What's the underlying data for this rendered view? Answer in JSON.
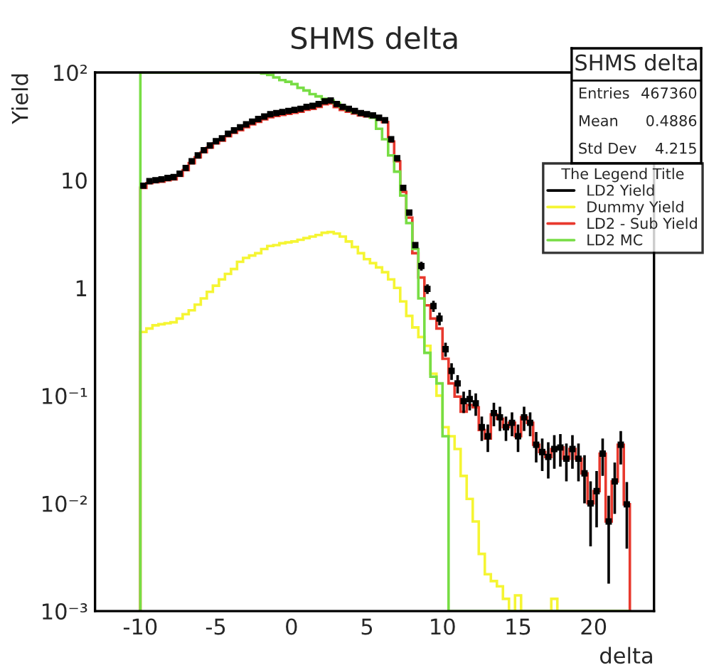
{
  "chart_data": {
    "type": "histogram",
    "title": "SHMS delta",
    "xlabel": "delta",
    "ylabel": "Yield",
    "legend_title": "The Legend Title",
    "annotations": [
      "SHMS delta",
      "Entries",
      "467360",
      "Mean",
      "0.4886",
      "Std Dev",
      "4.215"
    ],
    "log": "y",
    "grid": false,
    "legend": "top right",
    "xlim": [
      -13,
      24
    ],
    "xticks": [
      -10,
      -5,
      0,
      5,
      10,
      15,
      20
    ],
    "ylim": [
      0.001,
      100
    ],
    "yticks": [
      {
        "value": 0.001,
        "label": "10⁻³"
      },
      {
        "value": 0.01,
        "label": "10⁻²"
      },
      {
        "value": 0.1,
        "label": "10⁻¹"
      },
      1,
      10,
      {
        "value": 100,
        "label": "10²"
      }
    ],
    "bins": [
      -10,
      -9.6,
      -9.2,
      -8.8,
      -8.4,
      -8,
      -7.6,
      -7.2,
      -6.8,
      -6.4,
      -6,
      -5.6,
      -5.2,
      -4.8,
      -4.4,
      -4,
      -3.6,
      -3.2,
      -2.8,
      -2.4,
      -2,
      -1.6,
      -1.2,
      -0.8,
      -0.4,
      0,
      0.4,
      0.8,
      1.2,
      1.6,
      2,
      2.4,
      2.8,
      3.2,
      3.6,
      4,
      4.4,
      4.8,
      5.2,
      5.6,
      6,
      6.4,
      6.8,
      7.2,
      7.6,
      8,
      8.4,
      8.8,
      9.2,
      9.6,
      10,
      10.4,
      10.8,
      11.2,
      11.6,
      12,
      12.4,
      12.8,
      13.2,
      13.6,
      14,
      14.4,
      14.8,
      15.2,
      15.6,
      16,
      16.4,
      16.8,
      17.2,
      17.6,
      18,
      18.4,
      18.8,
      19.2,
      19.6,
      20,
      20.4,
      20.8,
      21.2,
      21.6,
      22,
      22.4
    ],
    "series": [
      {
        "name": "LD2 Yield",
        "type": "scatter",
        "marker": "square",
        "color": "#000000",
        "x": [
          -9.8,
          -9.4,
          -9,
          -8.6,
          -8.2,
          -7.8,
          -7.4,
          -7,
          -6.6,
          -6.2,
          -5.8,
          -5.4,
          -5,
          -4.6,
          -4.2,
          -3.8,
          -3.4,
          -3,
          -2.6,
          -2.2,
          -1.8,
          -1.4,
          -1,
          -0.6,
          -0.2,
          0.2,
          0.6,
          1,
          1.4,
          1.8,
          2.2,
          2.6,
          3,
          3.4,
          3.8,
          4.2,
          4.6,
          5,
          5.4,
          5.8,
          6.2,
          6.6,
          7,
          7.4,
          7.8,
          8.2,
          8.6,
          9,
          9.4,
          9.8,
          10.2,
          10.6,
          11,
          11.4,
          11.8,
          12.2,
          12.6,
          13,
          13.4,
          13.8,
          14.2,
          14.6,
          15,
          15.4,
          15.8,
          16.2,
          16.6,
          17,
          17.4,
          17.8,
          18.2,
          18.6,
          19,
          19.4,
          19.8,
          20.2,
          20.6,
          21,
          21.4,
          21.8,
          22.2
        ],
        "values": [
          8.9,
          9.8,
          10,
          10.2,
          10.5,
          10.7,
          11.5,
          13,
          15,
          17,
          19,
          21,
          23,
          24.5,
          27,
          29,
          31,
          33,
          35,
          37,
          39,
          41,
          42,
          43,
          44,
          45,
          46,
          48,
          49,
          51,
          54,
          55,
          51,
          48,
          46,
          44,
          42,
          41,
          40,
          38,
          36,
          24,
          16,
          8.5,
          5,
          2.5,
          1.6,
          0.98,
          0.68,
          0.52,
          0.27,
          0.17,
          0.13,
          0.089,
          0.093,
          0.085,
          0.051,
          0.042,
          0.069,
          0.063,
          0.051,
          0.056,
          0.042,
          0.063,
          0.056,
          0.035,
          0.03,
          0.027,
          0.032,
          0.033,
          0.026,
          0.032,
          0.026,
          0.019,
          0.01,
          0.013,
          0.029,
          0.0068,
          0.016,
          0.035,
          0.0098
        ],
        "errors": [
          null,
          null,
          null,
          null,
          null,
          null,
          null,
          null,
          null,
          null,
          null,
          null,
          null,
          null,
          null,
          null,
          null,
          null,
          null,
          null,
          null,
          null,
          null,
          null,
          null,
          null,
          null,
          null,
          null,
          null,
          null,
          null,
          null,
          null,
          null,
          null,
          null,
          null,
          null,
          null,
          null,
          null,
          null,
          null,
          null,
          null,
          0.15,
          0.1,
          0.08,
          0.07,
          0.04,
          0.03,
          0.025,
          0.02,
          0.02,
          0.02,
          0.013,
          0.012,
          0.017,
          0.016,
          0.013,
          0.014,
          0.012,
          0.016,
          0.014,
          0.011,
          0.01,
          0.01,
          0.011,
          0.011,
          0.01,
          0.011,
          0.01,
          0.009,
          0.006,
          0.007,
          0.011,
          0.005,
          0.008,
          0.012,
          0.006
        ],
        "xerrors": [
          0.12,
          0.12,
          0.12,
          0.12,
          0.12,
          0.12,
          0.12,
          0.12,
          0.12,
          0.12,
          0.12,
          0.12,
          0.12,
          0.12,
          0.12,
          0.12,
          0.12,
          0.12,
          0.12,
          0.12,
          0.12,
          0.12,
          0.12,
          0.12,
          0.12,
          0.12,
          0.12,
          0.12,
          0.12,
          0.12,
          0.12,
          0.12,
          0.12,
          0.12,
          0.12,
          0.12,
          0.12,
          0.12,
          0.12,
          0.12,
          0.12,
          0.12,
          0.12,
          0.12,
          0.12,
          0.12,
          0.12,
          0.12,
          0.12,
          0.12,
          0.12,
          0.12,
          0.12,
          0.12,
          0.12,
          0.12,
          0.12,
          0.12,
          0.12,
          0.12,
          0.12,
          0.12,
          0.12,
          0.12,
          0.12,
          0.12,
          0.12,
          0.12,
          0.12,
          0.12,
          0.12,
          0.12,
          0.12,
          0.12,
          0.12,
          0.12,
          0.12,
          0.12,
          0.12,
          0.12,
          0.12
        ]
      },
      {
        "name": "Dummy Yield",
        "type": "histogram",
        "color": "#f5f533",
        "values": [
          0.39,
          0.42,
          0.45,
          0.46,
          0.47,
          0.48,
          0.52,
          0.57,
          0.62,
          0.7,
          0.8,
          0.92,
          1.05,
          1.2,
          1.35,
          1.5,
          1.75,
          1.9,
          2,
          2.1,
          2.3,
          2.45,
          2.5,
          2.6,
          2.65,
          2.7,
          2.8,
          2.9,
          3,
          3.1,
          3.25,
          3.3,
          3.2,
          3,
          2.7,
          2.4,
          2.1,
          1.85,
          1.7,
          1.55,
          1.4,
          1.2,
          1,
          0.75,
          0.55,
          0.43,
          0.35,
          0.29,
          0.16,
          0.1,
          0.051,
          0.042,
          0.032,
          0.018,
          0.011,
          0.0068,
          0.0034,
          0.0022,
          0.0019,
          0.0017,
          0.0013,
          null,
          0.0014,
          null,
          null,
          null,
          null,
          null,
          0.0013,
          null,
          null,
          null,
          null,
          null,
          null,
          null,
          null,
          null,
          null,
          null,
          null
        ]
      },
      {
        "name": "LD2 - Sub Yield",
        "type": "histogram",
        "color": "#e8392e",
        "values": [
          8.5,
          9.4,
          9.6,
          9.7,
          10,
          10.2,
          11,
          12.4,
          14.4,
          16.3,
          18.2,
          20.1,
          22,
          23.3,
          25.6,
          27.5,
          29.2,
          31.1,
          33,
          34.9,
          36.7,
          38.5,
          39.5,
          40.4,
          41.3,
          42.3,
          43.2,
          45.1,
          46,
          47.9,
          50.8,
          51.7,
          47.8,
          45,
          43.3,
          41.6,
          39.9,
          39.2,
          38.3,
          36.5,
          34.6,
          22.8,
          15,
          7.8,
          4.5,
          2.1,
          1.25,
          0.69,
          0.52,
          0.42,
          0.22,
          0.13,
          0.098,
          0.071,
          0.082,
          0.078,
          0.048,
          0.04,
          0.067,
          0.061,
          0.051,
          0.056,
          0.042,
          0.063,
          0.056,
          0.035,
          0.03,
          0.027,
          0.032,
          0.033,
          0.026,
          0.032,
          0.026,
          0.019,
          0.01,
          0.013,
          0.029,
          0.0068,
          0.016,
          0.035,
          0.0098
        ]
      },
      {
        "name": "LD2 MC",
        "type": "histogram",
        "color": "#77dd44",
        "values": [
          100,
          100,
          100,
          100,
          100,
          100,
          100,
          100,
          100,
          100,
          100,
          100,
          100,
          100,
          100,
          100,
          100,
          100,
          100,
          100,
          98,
          95,
          90,
          85,
          82,
          78,
          72,
          68,
          63,
          60,
          57,
          55,
          52,
          48,
          45,
          43,
          42,
          41,
          38,
          30,
          24,
          17,
          12,
          7.2,
          4,
          2.3,
          0.8,
          0.25,
          0.15,
          0.13,
          0.042,
          null,
          null,
          null,
          null,
          null,
          null,
          null,
          null,
          null,
          null,
          null,
          null,
          null,
          null,
          null,
          null,
          null,
          null,
          null,
          null,
          null,
          null,
          null,
          null,
          null,
          null,
          null,
          null,
          null,
          null
        ]
      }
    ]
  }
}
